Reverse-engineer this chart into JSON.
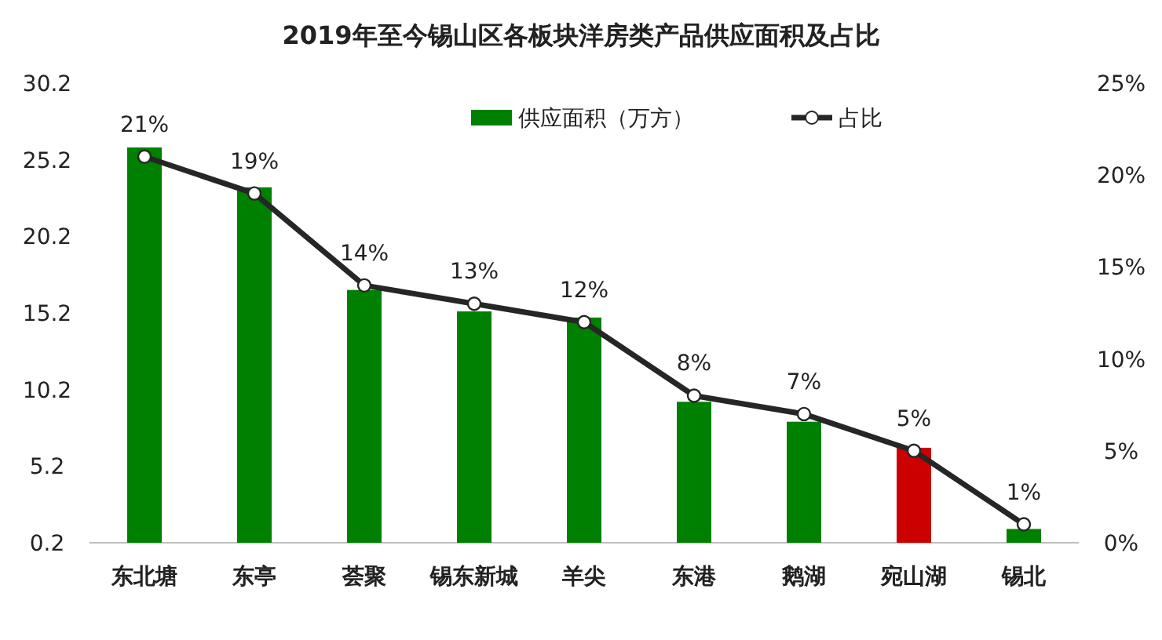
{
  "chart_data": {
    "type": "bar",
    "title": "2019年至今锡山区各板块洋房类产品供应面积及占比",
    "categories": [
      "东北塘",
      "东亭",
      "荟聚",
      "锡东新城",
      "羊尖",
      "东港",
      "鹅湖",
      "宛山湖",
      "锡北"
    ],
    "series": [
      {
        "name": "供应面积（万方）",
        "color": "#008000",
        "colors": [
          "#008000",
          "#008000",
          "#008000",
          "#008000",
          "#008000",
          "#008000",
          "#008000",
          "#cc0000",
          "#008000"
        ],
        "values": [
          26.0,
          23.4,
          16.7,
          15.3,
          14.9,
          9.4,
          8.1,
          6.4,
          1.1
        ]
      },
      {
        "name": "占比",
        "type": "line",
        "axis": "y2",
        "color": "#262626",
        "marker": "circle",
        "values": [
          21,
          19,
          14,
          13,
          12,
          8,
          7,
          5,
          1
        ],
        "value_labels": [
          "21%",
          "19%",
          "14%",
          "13%",
          "12%",
          "8%",
          "7%",
          "5%",
          "1%"
        ]
      }
    ],
    "ylim": [
      0.2,
      30.2
    ],
    "yticks": [
      0.2,
      5.2,
      10.2,
      15.2,
      20.2,
      25.2,
      30.2
    ],
    "y2lim": [
      0,
      25
    ],
    "y2ticks": [
      {
        "value": 0,
        "label": "0%"
      },
      {
        "value": 5,
        "label": "5%"
      },
      {
        "value": 10,
        "label": "10%"
      },
      {
        "value": 15,
        "label": "15%"
      },
      {
        "value": 20,
        "label": "20%"
      },
      {
        "value": 25,
        "label": "25%"
      }
    ],
    "legend": "top",
    "grid": false
  }
}
